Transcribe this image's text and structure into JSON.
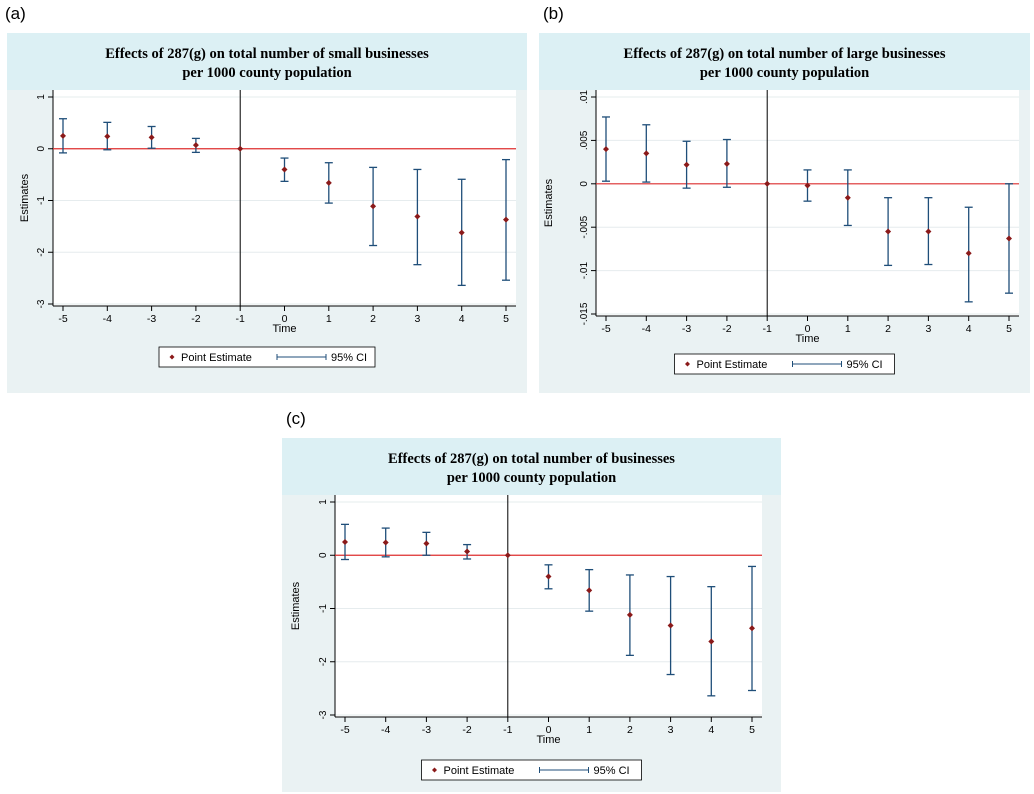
{
  "panel_labels": [
    "(a)",
    "(b)",
    "(c)"
  ],
  "colors": {
    "panel_bg": "#eaf2f3",
    "title_bg": "#dcf0f4",
    "point": "#8b1a1a",
    "ci": "#1f4e79",
    "zero_line": "#e03030",
    "ref_line": "#000000",
    "grid": "#e6ecee"
  },
  "chart_data": [
    {
      "type": "scatter",
      "title": "Effects of 287(g) on total number of small businesses",
      "subtitle": "per 1000 county population",
      "xlabel": "Time",
      "ylabel": "Estimates",
      "x": [
        -5,
        -4,
        -3,
        -2,
        -1,
        0,
        1,
        2,
        3,
        4,
        5
      ],
      "xlim": [
        -5,
        5
      ],
      "ylim": [
        -3,
        1
      ],
      "yticks": [
        1,
        0,
        -1,
        -2,
        -3
      ],
      "ytick_labels": [
        "1",
        "0",
        "-1",
        "-2",
        "-3"
      ],
      "grid": true,
      "ref_x": -1,
      "ref_y": 0,
      "legend": [
        "Point Estimate",
        "95% CI"
      ],
      "legend_position": "bottom",
      "series": [
        {
          "name": "Point Estimate",
          "values": [
            0.25,
            0.24,
            0.22,
            0.07,
            0.0,
            -0.4,
            -0.66,
            -1.11,
            -1.31,
            -1.62,
            -1.37
          ]
        },
        {
          "name": "95% CI",
          "low": [
            -0.08,
            -0.02,
            0.01,
            -0.07,
            0.0,
            -0.63,
            -1.05,
            -1.87,
            -2.24,
            -2.64,
            -2.54
          ],
          "high": [
            0.58,
            0.51,
            0.43,
            0.2,
            0.0,
            -0.18,
            -0.27,
            -0.36,
            -0.4,
            -0.59,
            -0.21
          ]
        }
      ]
    },
    {
      "type": "scatter",
      "title": "Effects of 287(g) on total number of large businesses",
      "subtitle": "per 1000 county population",
      "xlabel": "Time",
      "ylabel": "Estimates",
      "x": [
        -5,
        -4,
        -3,
        -2,
        -1,
        0,
        1,
        2,
        3,
        4,
        5
      ],
      "xlim": [
        -5,
        5
      ],
      "ylim": [
        -0.016,
        0.01
      ],
      "yticks": [
        0.01,
        0.005,
        0,
        -0.005,
        -0.01,
        -0.015
      ],
      "ytick_labels": [
        ".01",
        ".005",
        "0",
        "-.005",
        "-.01",
        "-.015"
      ],
      "grid": true,
      "ref_x": -1,
      "ref_y": 0,
      "legend": [
        "Point Estimate",
        "95% CI"
      ],
      "legend_position": "bottom",
      "series": [
        {
          "name": "Point Estimate",
          "values": [
            0.004,
            0.0035,
            0.0022,
            0.0023,
            0.0,
            -0.0002,
            -0.0016,
            -0.0055,
            -0.0055,
            -0.008,
            -0.0063
          ]
        },
        {
          "name": "95% CI",
          "low": [
            0.0003,
            0.0002,
            -0.0005,
            -0.0004,
            0.0,
            -0.002,
            -0.0048,
            -0.0094,
            -0.0093,
            -0.0136,
            -0.0126
          ],
          "high": [
            0.0077,
            0.0068,
            0.0049,
            0.0051,
            0.0,
            0.0016,
            0.0016,
            -0.0016,
            -0.0016,
            -0.0027,
            0.0
          ]
        }
      ]
    },
    {
      "type": "scatter",
      "title": "Effects of 287(g) on total number of  businesses",
      "subtitle": "per 1000 county population",
      "xlabel": "Time",
      "ylabel": "Estimates",
      "x": [
        -5,
        -4,
        -3,
        -2,
        -1,
        0,
        1,
        2,
        3,
        4,
        5
      ],
      "xlim": [
        -5,
        5
      ],
      "ylim": [
        -3,
        1
      ],
      "yticks": [
        1,
        0,
        -1,
        -2,
        -3
      ],
      "ytick_labels": [
        "1",
        "0",
        "-1",
        "-2",
        "-3"
      ],
      "grid": true,
      "ref_x": -1,
      "ref_y": 0,
      "legend": [
        "Point Estimate",
        "95% CI"
      ],
      "legend_position": "bottom",
      "series": [
        {
          "name": "Point Estimate",
          "values": [
            0.25,
            0.24,
            0.22,
            0.07,
            0.0,
            -0.4,
            -0.66,
            -1.12,
            -1.32,
            -1.62,
            -1.37
          ]
        },
        {
          "name": "95% CI",
          "low": [
            -0.08,
            -0.03,
            0.0,
            -0.07,
            0.0,
            -0.63,
            -1.05,
            -1.88,
            -2.24,
            -2.64,
            -2.54
          ],
          "high": [
            0.58,
            0.51,
            0.43,
            0.2,
            0.0,
            -0.18,
            -0.27,
            -0.37,
            -0.4,
            -0.59,
            -0.21
          ]
        }
      ]
    }
  ]
}
